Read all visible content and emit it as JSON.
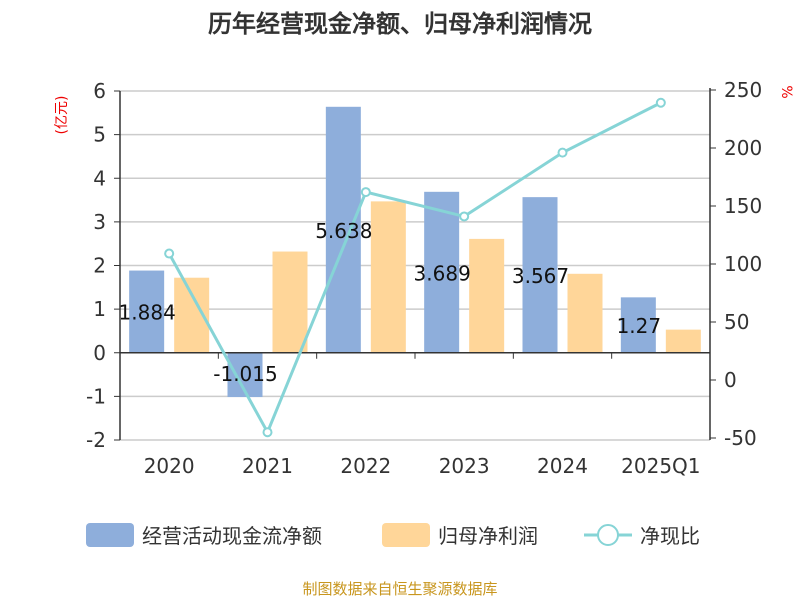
{
  "chart_data": {
    "type": "bar",
    "title": "历年经营现金净额、归母净利润情况",
    "categories": [
      "2020",
      "2021",
      "2022",
      "2023",
      "2024",
      "2025Q1"
    ],
    "series": [
      {
        "name": "经营活动现金流净额",
        "type": "bar",
        "axis": "left",
        "color": "#8eaedb",
        "values": [
          1.884,
          -1.015,
          5.638,
          3.689,
          3.567,
          1.27
        ],
        "labels": [
          "1.884",
          "-1.015",
          "5.638",
          "3.689",
          "3.567",
          "1.27"
        ]
      },
      {
        "name": "归母净利润",
        "type": "bar",
        "axis": "left",
        "color": "#ffd699",
        "values": [
          1.72,
          2.32,
          3.47,
          2.61,
          1.81,
          0.53
        ]
      },
      {
        "name": "净现比",
        "type": "line",
        "axis": "right",
        "color": "#86d4d6",
        "values": [
          109,
          -45,
          162,
          141,
          196,
          239
        ]
      }
    ],
    "ylabel": "(亿元)",
    "y2label": "%",
    "ylim": [
      -2,
      6
    ],
    "y2lim": [
      -50,
      250
    ],
    "yticks": [
      "-2",
      "-1",
      "0",
      "1",
      "2",
      "3",
      "4",
      "5",
      "6"
    ],
    "y2ticks": [
      "-50",
      "0",
      "50",
      "100",
      "150",
      "200",
      "250"
    ],
    "legend": "bottom",
    "grid": true
  },
  "source": "制图数据来自恒生聚源数据库"
}
